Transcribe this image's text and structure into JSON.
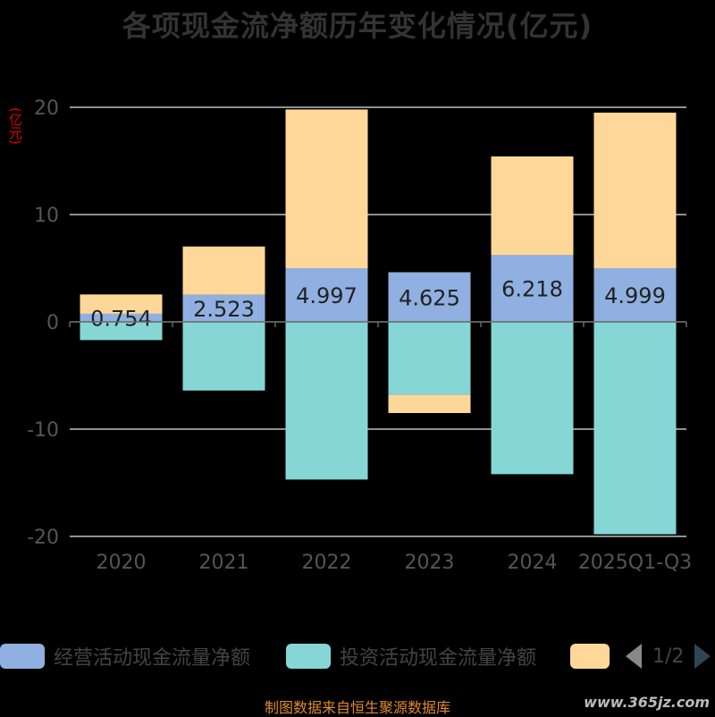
{
  "title": "各项现金流净额历年变化情况(亿元)",
  "unit_label": "(亿元)",
  "legend": {
    "items": [
      {
        "label": "经营活动现金流量净额",
        "color": "#8fb0e0"
      },
      {
        "label": "投资活动现金流量净额",
        "color": "#86d6d6"
      },
      {
        "label": "",
        "color": "#ffd899"
      }
    ],
    "page": "1/2"
  },
  "footer": "制图数据来自恒生聚源数据库",
  "watermark": "www.365jz.com",
  "chart_data": {
    "type": "bar",
    "stacked": true,
    "categories": [
      "2020",
      "2021",
      "2022",
      "2023",
      "2024",
      "2025Q1-Q3"
    ],
    "ylim": [
      -20,
      20
    ],
    "yticks": [
      20,
      10,
      0,
      -10,
      -20
    ],
    "ylabel": "(亿元)",
    "series": [
      {
        "name": "经营活动现金流量净额",
        "color": "#8fb0e0",
        "values": [
          0.754,
          2.523,
          4.997,
          4.625,
          6.218,
          4.999
        ],
        "show_labels": true
      },
      {
        "name": "投资活动现金流量净额",
        "color": "#86d6d6",
        "values": [
          -1.7,
          -6.4,
          -14.7,
          -6.8,
          -14.2,
          -19.8
        ]
      },
      {
        "name": "",
        "color": "#ffd899",
        "values": [
          1.8,
          4.5,
          14.8,
          -1.7,
          9.2,
          14.5
        ]
      }
    ]
  }
}
